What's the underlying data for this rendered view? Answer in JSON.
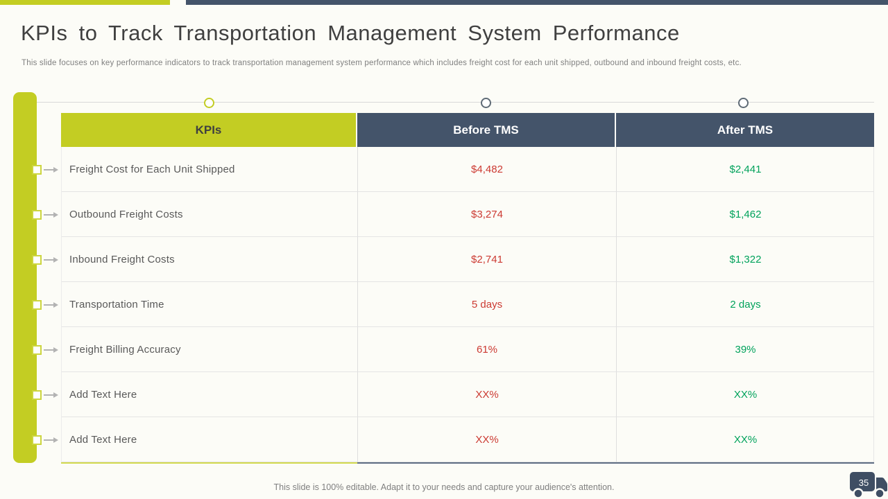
{
  "slide": {
    "title": "KPIs to Track Transportation Management System Performance",
    "subtitle": "This slide focuses on key performance indicators to track transportation management system performance which includes freight cost for each unit shipped, outbound and inbound freight costs, etc.",
    "footer": "This slide is 100% editable. Adapt it to your needs and capture your audience's attention.",
    "page_number": "35"
  },
  "table": {
    "headers": [
      "KPIs",
      "Before TMS",
      "After TMS"
    ],
    "rows": [
      {
        "kpi": "Freight Cost for Each Unit Shipped",
        "before": "$4,482",
        "after": "$2,441"
      },
      {
        "kpi": "Outbound Freight Costs",
        "before": "$3,274",
        "after": "$1,462"
      },
      {
        "kpi": "Inbound Freight Costs",
        "before": "$2,741",
        "after": "$1,322"
      },
      {
        "kpi": "Transportation Time",
        "before": "5 days",
        "after": "2 days"
      },
      {
        "kpi": "Freight Billing Accuracy",
        "before": "61%",
        "after": "39%"
      },
      {
        "kpi": "Add Text Here",
        "before": "XX%",
        "after": "XX%"
      },
      {
        "kpi": "Add Text Here",
        "before": "XX%",
        "after": "XX%"
      }
    ]
  },
  "icons": {
    "truck": "truck-icon"
  },
  "colors": {
    "accent_lime": "#c3cd23",
    "accent_slate": "#44546a",
    "before_value_red": "#cc3a32",
    "after_value_green": "#00a25b"
  }
}
